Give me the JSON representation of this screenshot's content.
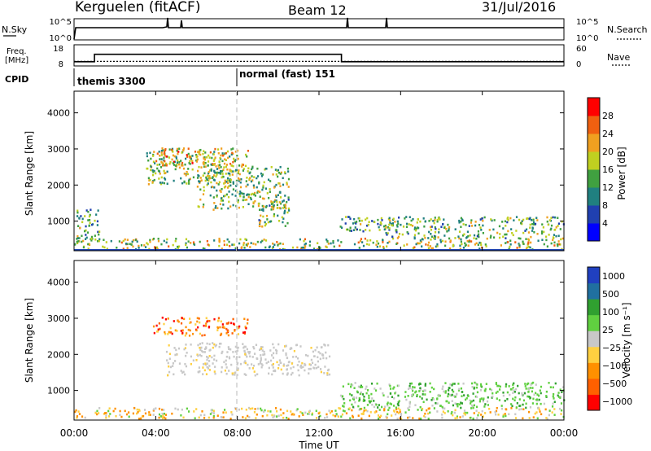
{
  "header": {
    "title": "Kerguelen (fitACF)",
    "beam": "Beam 12",
    "date": "31/Jul/2016"
  },
  "top_panels": {
    "nsky_label": "N.Sky",
    "nsearch_label": "N.Search",
    "count_ticks": [
      "10^5",
      "10^0"
    ],
    "freq_label": "Freq.",
    "freq_unit": "[MHz]",
    "freq_ticks": [
      "18",
      "8"
    ],
    "nave_ticks": [
      "60",
      "0"
    ],
    "nave_label": "Nave",
    "cpid_label": "CPID",
    "cpid_segments": [
      {
        "label": "themis 3300",
        "start_hour": 0
      },
      {
        "label": "normal (fast) 151",
        "start_hour": 8
      }
    ],
    "freq_steps": [
      {
        "start": 0.0,
        "end": 1.0,
        "mhz": 10.0
      },
      {
        "start": 1.0,
        "end": 13.1,
        "mhz": 13.5
      },
      {
        "start": 13.1,
        "end": 24.0,
        "mhz": 10.0
      }
    ],
    "nave_level": 13
  },
  "chart_data": [
    {
      "type": "heatmap",
      "name": "power",
      "ylabel": "Slant Range [km]",
      "xlabel": "Time UT",
      "xlim": [
        0,
        24
      ],
      "ylim": [
        180,
        4600
      ],
      "x_ticks": [
        "00:00",
        "04:00",
        "08:00",
        "12:00",
        "16:00",
        "20:00",
        "00:00"
      ],
      "y_ticks": [
        1000,
        2000,
        3000,
        4000
      ],
      "colorbar": {
        "label": "Power [dB]",
        "ticks": [
          "28",
          "24",
          "20",
          "16",
          "12",
          "8",
          "4"
        ],
        "colors": [
          "#0000ff",
          "#2040b0",
          "#208080",
          "#40a040",
          "#c0d020",
          "#f0a020",
          "#f06010",
          "#ff0000"
        ]
      },
      "regions": [
        {
          "t0": 0.0,
          "t1": 24.0,
          "r0": 200,
          "r1": 500,
          "level": 0.55
        },
        {
          "t0": 0.1,
          "t1": 1.2,
          "r0": 400,
          "r1": 1300,
          "level": 0.4
        },
        {
          "t0": 3.5,
          "t1": 8.0,
          "r0": 2000,
          "r1": 3000,
          "level": 0.5
        },
        {
          "t0": 6.0,
          "t1": 10.5,
          "r0": 1300,
          "r1": 2500,
          "level": 0.5
        },
        {
          "t0": 3.8,
          "t1": 8.5,
          "r0": 2500,
          "r1": 3000,
          "level": 0.65
        },
        {
          "t0": 9.0,
          "t1": 10.5,
          "r0": 800,
          "r1": 1600,
          "level": 0.45
        },
        {
          "t0": 13.0,
          "t1": 16.0,
          "r0": 700,
          "r1": 1100,
          "level": 0.4
        },
        {
          "t0": 15.0,
          "t1": 24.0,
          "r0": 500,
          "r1": 1100,
          "level": 0.45
        }
      ]
    },
    {
      "type": "heatmap",
      "name": "velocity",
      "ylabel": "Slant Range [km]",
      "xlabel": "Time UT",
      "xlim": [
        0,
        24
      ],
      "ylim": [
        180,
        4600
      ],
      "x_ticks": [
        "00:00",
        "04:00",
        "08:00",
        "12:00",
        "16:00",
        "20:00",
        "00:00"
      ],
      "y_ticks": [
        1000,
        2000,
        3000,
        4000
      ],
      "colorbar": {
        "label": "Velocity [m s⁻¹]",
        "ticks": [
          "1000",
          "500",
          "100",
          "25",
          "−25",
          "−100",
          "−500",
          "−1000"
        ],
        "colors": [
          "#ff0000",
          "#ff6000",
          "#ff9000",
          "#ffd040",
          "#c8c8c8",
          "#60d040",
          "#30a030",
          "#2070a0",
          "#2040c0"
        ]
      },
      "regions": [
        {
          "t0": 3.8,
          "t1": 8.5,
          "r0": 2500,
          "r1": 3000,
          "level": "negative"
        },
        {
          "t0": 4.5,
          "t1": 12.5,
          "r0": 1400,
          "r1": 2300,
          "level": "ground"
        },
        {
          "t0": 0.0,
          "t1": 24.0,
          "r0": 200,
          "r1": 500,
          "level": "mixed"
        },
        {
          "t0": 13.0,
          "t1": 24.0,
          "r0": 500,
          "r1": 1200,
          "level": "positive"
        }
      ]
    }
  ]
}
